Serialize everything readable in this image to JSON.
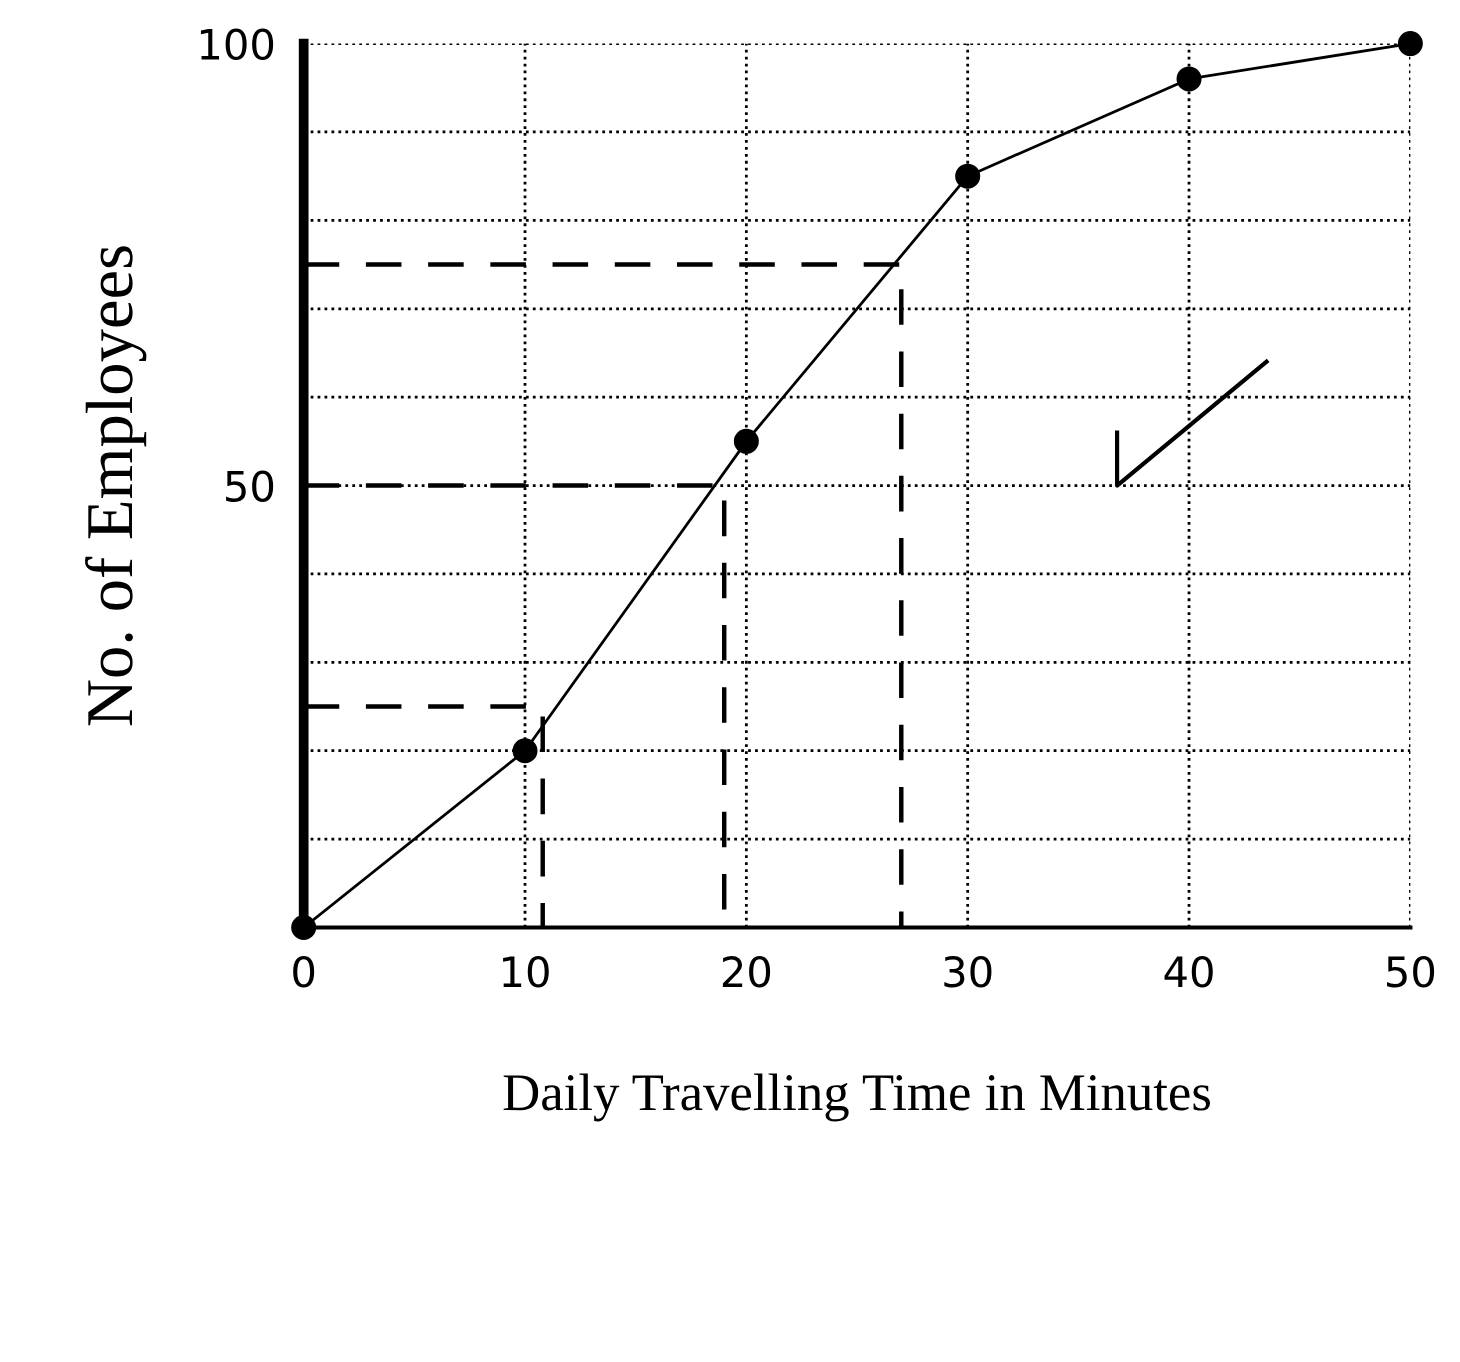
{
  "chart_data": {
    "type": "line",
    "xlabel": "Daily Travelling Time in Minutes",
    "ylabel": "No. of Employees",
    "xlim": [
      0,
      50
    ],
    "xticks": [
      0,
      10,
      20,
      30,
      40,
      50
    ],
    "ylim": [
      0,
      100
    ],
    "yticks": [
      {
        "value": 0,
        "label": null
      },
      {
        "value": 10,
        "label": null
      },
      {
        "value": 20,
        "label": null
      },
      {
        "value": 30,
        "label": null
      },
      {
        "value": 40,
        "label": null
      },
      50,
      {
        "value": 60,
        "label": null
      },
      {
        "value": 70,
        "label": null
      },
      {
        "value": 80,
        "label": null
      },
      {
        "value": 90,
        "label": null
      },
      100
    ],
    "grid": true,
    "legend": false,
    "series": [
      {
        "color": "#000000",
        "x": [
          0,
          10,
          20,
          30,
          40,
          50
        ],
        "values": [
          0,
          20,
          55,
          85,
          96,
          100
        ],
        "marker": "circle",
        "line_style": "solid"
      },
      {
        "color": "#000000",
        "x": [
          0,
          10.8,
          10.8
        ],
        "values": [
          25,
          25,
          0
        ],
        "marker": "none",
        "line_style": "dashed"
      },
      {
        "color": "#000000",
        "x": [
          0,
          19,
          19
        ],
        "values": [
          50,
          50,
          0
        ],
        "marker": "none",
        "line_style": "dashed"
      },
      {
        "color": "#000000",
        "x": [
          0,
          27,
          27
        ],
        "values": [
          75,
          75,
          0
        ],
        "marker": "none",
        "line_style": "dashed"
      }
    ]
  }
}
